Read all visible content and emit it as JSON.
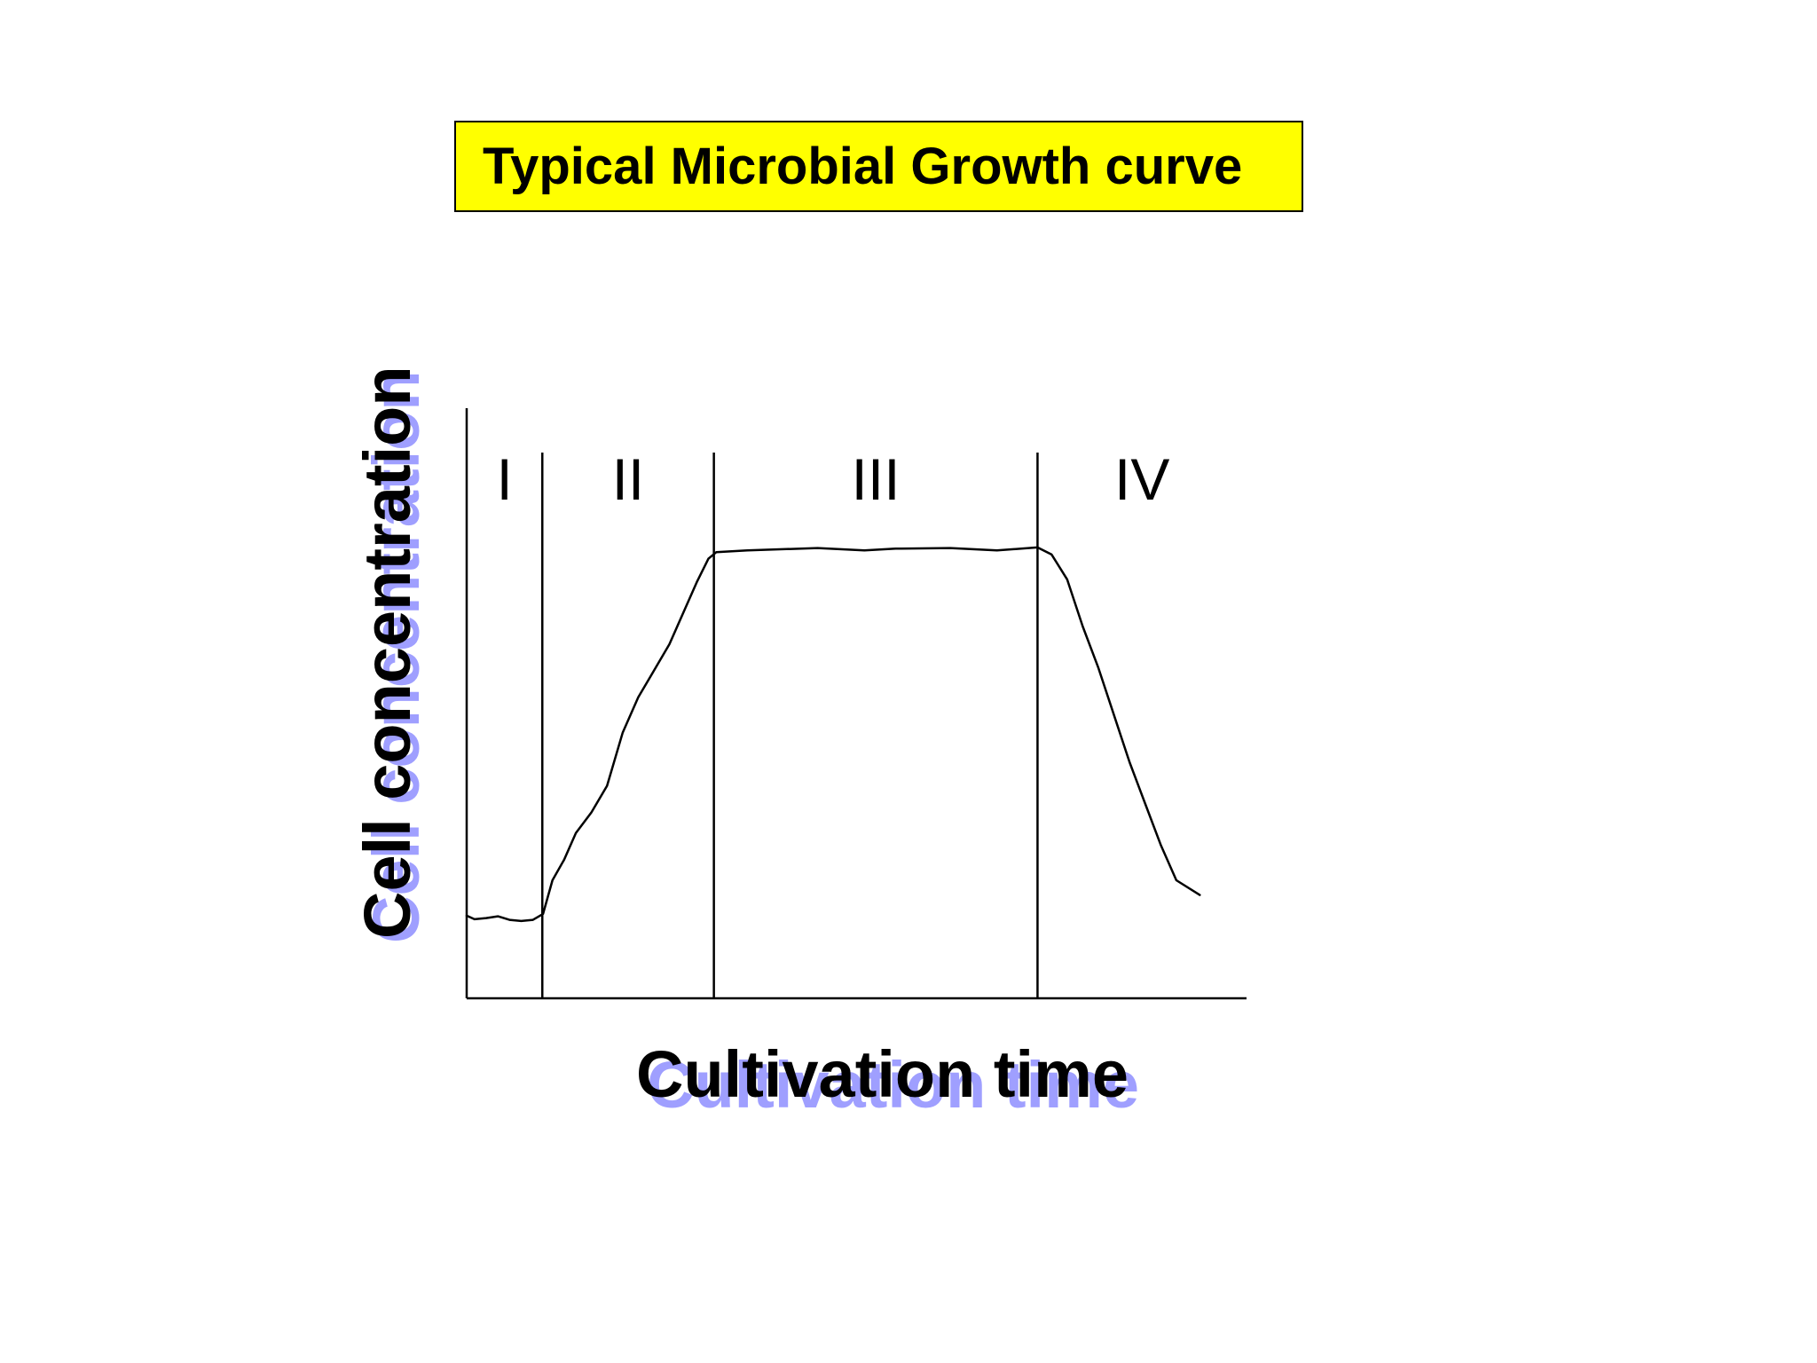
{
  "title": "Typical Microbial Growth curve",
  "colors": {
    "title_background": "#ffff00",
    "axis_text": "#000000",
    "axis_text_shadow": "#8080ff",
    "curve": "#000000"
  },
  "chart_data": {
    "type": "line",
    "title": "Typical Microbial Growth curve",
    "xlabel": "Cultivation time",
    "ylabel": "Cell concentration",
    "xlim": [
      0,
      100
    ],
    "ylim": [
      0,
      100
    ],
    "grid": false,
    "phases": [
      {
        "label": "I",
        "start": 0,
        "end": 9.7
      },
      {
        "label": "II",
        "start": 9.7,
        "end": 31.7
      },
      {
        "label": "III",
        "start": 31.7,
        "end": 73.2
      },
      {
        "label": "IV",
        "start": 73.2,
        "end": 100
      }
    ],
    "series": [
      {
        "values": [
          [
            0,
            14
          ],
          [
            1,
            13.4
          ],
          [
            2.5,
            13.6
          ],
          [
            4,
            13.9
          ],
          [
            5.5,
            13.3
          ],
          [
            7,
            13.1
          ],
          [
            8.5,
            13.3
          ],
          [
            9.8,
            14.3
          ],
          [
            11,
            20
          ],
          [
            12.5,
            23.5
          ],
          [
            14,
            28
          ],
          [
            16,
            31.5
          ],
          [
            18,
            36
          ],
          [
            20,
            45
          ],
          [
            22,
            51
          ],
          [
            24,
            55.5
          ],
          [
            26,
            60
          ],
          [
            28,
            66
          ],
          [
            29.5,
            70.5
          ],
          [
            31,
            74.5
          ],
          [
            32,
            75.6
          ],
          [
            36,
            75.9
          ],
          [
            45,
            76.3
          ],
          [
            51,
            75.9
          ],
          [
            55,
            76.2
          ],
          [
            62,
            76.3
          ],
          [
            68,
            75.9
          ],
          [
            73.2,
            76.4
          ],
          [
            75,
            75.2
          ],
          [
            77,
            71
          ],
          [
            79,
            63
          ],
          [
            81,
            56
          ],
          [
            83,
            48
          ],
          [
            85,
            40
          ],
          [
            87,
            33
          ],
          [
            89,
            26
          ],
          [
            91,
            20
          ],
          [
            94,
            17.5
          ]
        ]
      }
    ]
  }
}
